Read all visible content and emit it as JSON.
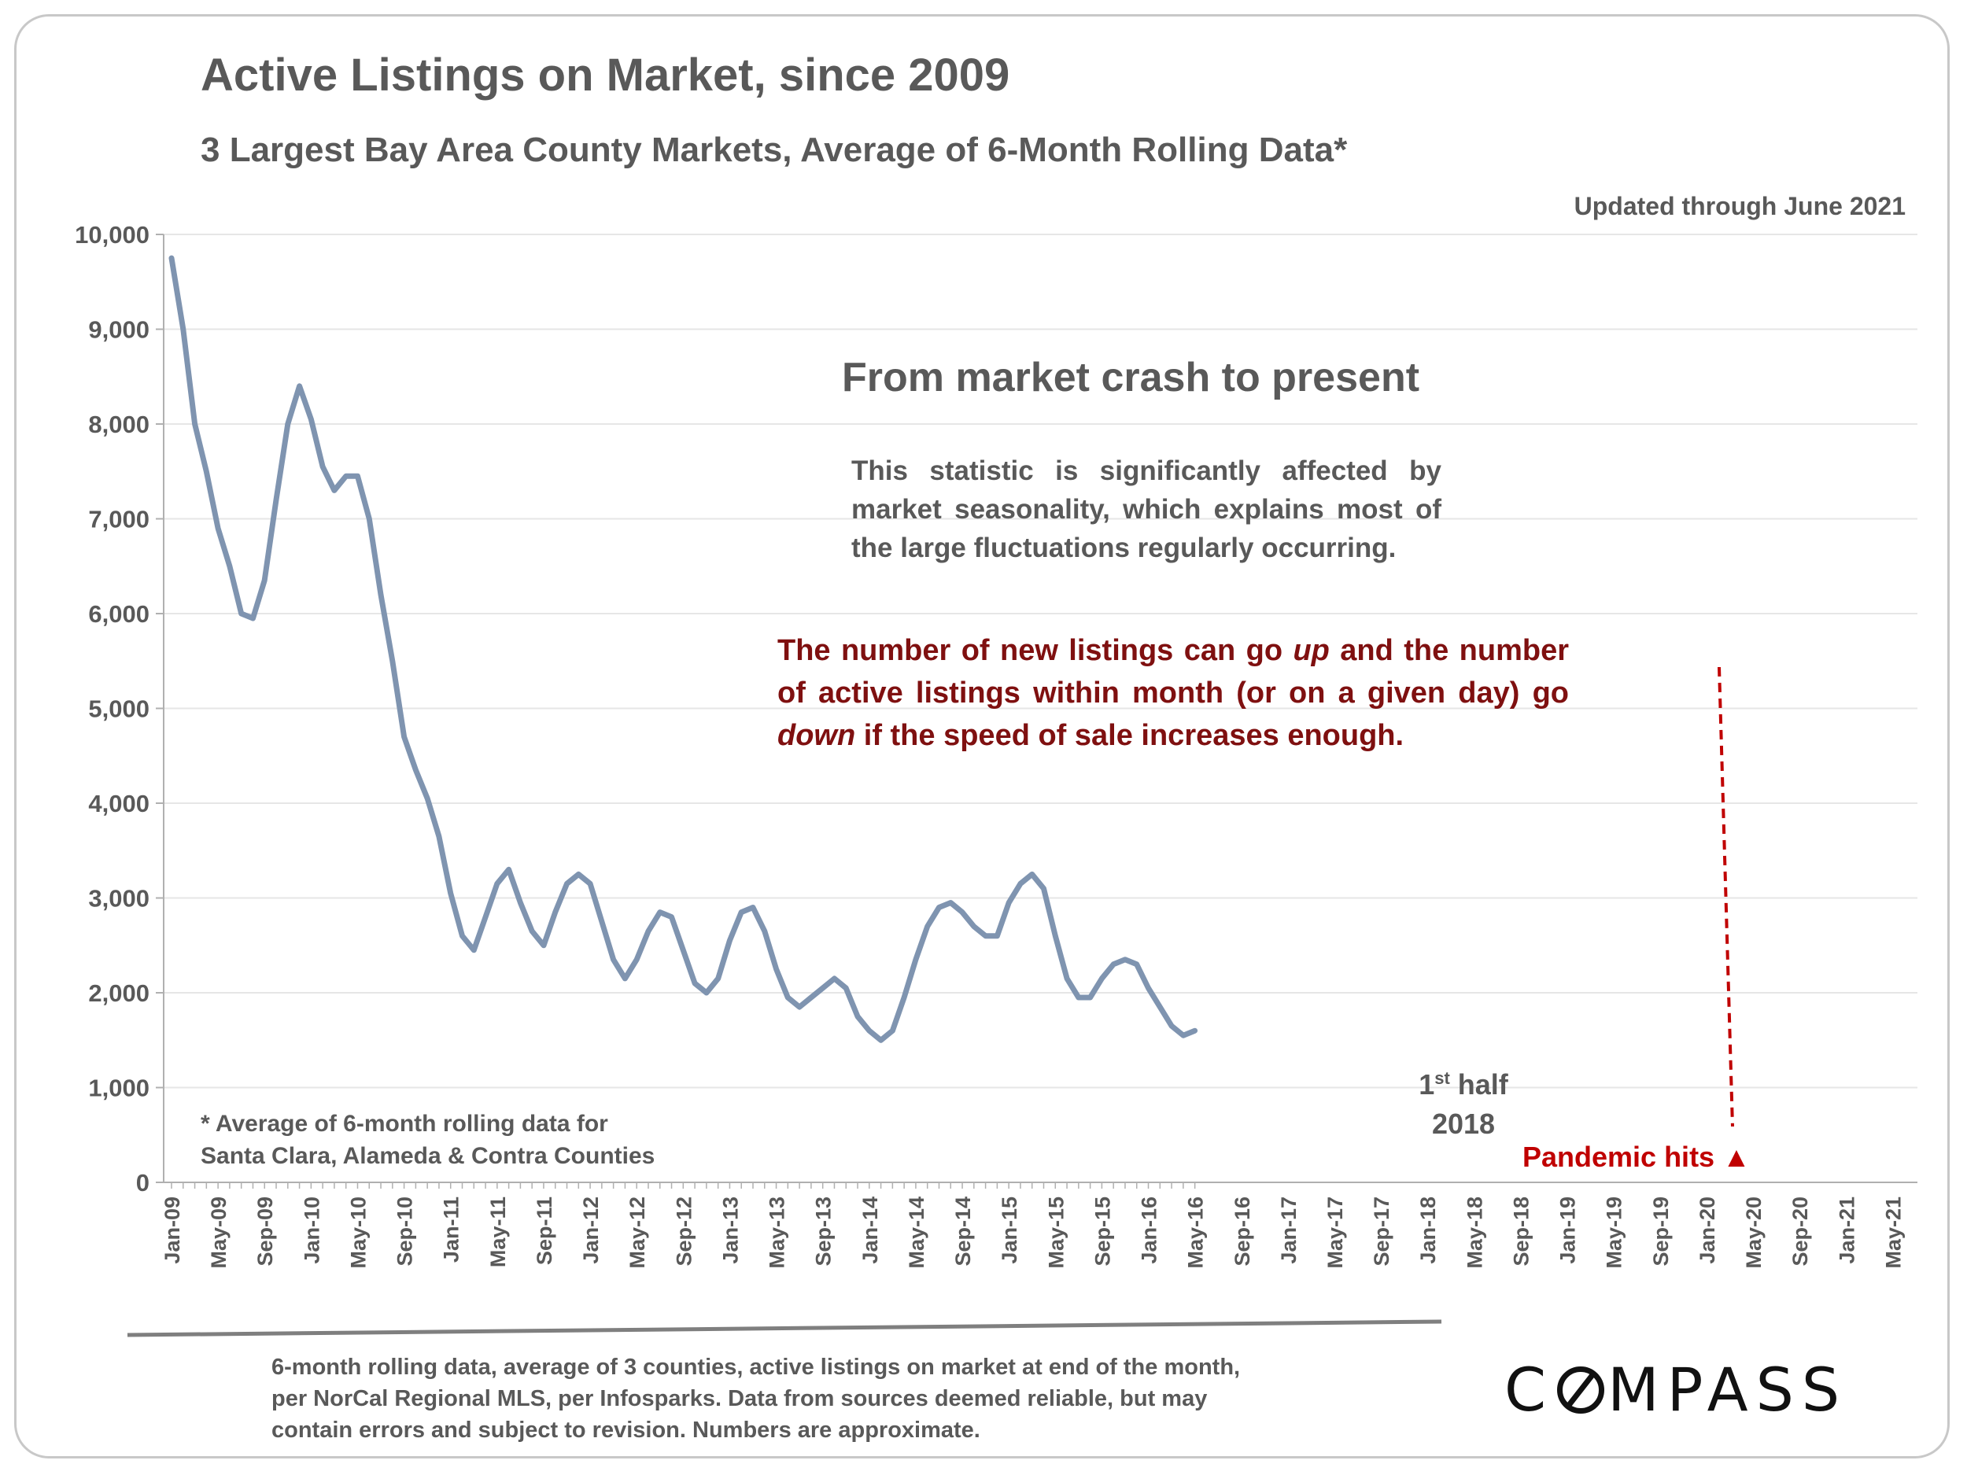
{
  "chart_data": {
    "type": "line",
    "title": "Active Listings on Market, since 2009",
    "subtitle": "3 Largest Bay Area County Markets, Average of 6-Month Rolling Data*",
    "updated": "Updated through June 2021",
    "ylim": [
      0,
      10000
    ],
    "y_ticks": [
      "0",
      "1,000",
      "2,000",
      "3,000",
      "4,000",
      "5,000",
      "6,000",
      "7,000",
      "8,000",
      "9,000",
      "10,000"
    ],
    "x_tick_labels": [
      "Jan-09",
      "May-09",
      "Sep-09",
      "Jan-10",
      "May-10",
      "Sep-10",
      "Jan-11",
      "May-11",
      "Sep-11",
      "Jan-12",
      "May-12",
      "Sep-12",
      "Jan-13",
      "May-13",
      "Sep-13",
      "Jan-14",
      "May-14",
      "Sep-14",
      "Jan-15",
      "May-15",
      "Sep-15",
      "Jan-16",
      "May-16",
      "Sep-16",
      "Jan-17",
      "May-17",
      "Sep-17",
      "Jan-18",
      "May-18",
      "Sep-18",
      "Jan-19",
      "May-19",
      "Sep-19",
      "Jan-20",
      "May-20",
      "Sep-20",
      "Jan-21",
      "May-21"
    ],
    "grid": true,
    "line_color": "#7f94b0",
    "series": [
      {
        "values": [
          9750,
          9000,
          8000,
          7500,
          6900,
          6500,
          6000,
          5950,
          6350,
          7200,
          8000,
          8400,
          8050,
          7550,
          7300,
          7450,
          7450,
          7000,
          6200,
          5500,
          4700,
          4350,
          4050,
          3650,
          3050,
          2600,
          2450,
          2800,
          3150,
          3300,
          2950,
          2650,
          2500,
          2850,
          3150,
          3250,
          3150,
          2750,
          2350,
          2150,
          2350,
          2650,
          2850,
          2800,
          2450,
          2100,
          2000,
          2150,
          2550,
          2850,
          2900,
          2650,
          2250,
          1950,
          1850,
          1950,
          2050,
          2150,
          2050,
          1750,
          1600,
          1500,
          1600,
          1950,
          2350,
          2700,
          2900,
          2950,
          2850,
          2700,
          2600,
          2600,
          2950,
          3150,
          3250,
          3100,
          2600,
          2150,
          1950,
          1950,
          2150,
          2300,
          2350,
          2300,
          2050,
          1850,
          1650,
          1550,
          1600
        ]
      }
    ],
    "annotations": {
      "headline": "From market crash to present",
      "seasonality_note": "This statistic is significantly affected by market seasonality, which explains most of the large fluctuations regularly occurring.",
      "speed_note_1": "The number of new listings can go ",
      "speed_note_up": "up",
      "speed_note_2": " and the number of active listings within month (or on a given day) go ",
      "speed_note_down": "down",
      "speed_note_3": " if the speed of sale increases enough.",
      "first_half_sup_prefix": "1",
      "first_half_sup": "st",
      "first_half_line1_rest": " half",
      "first_half_line2": "2018",
      "pandemic_label": "Pandemic hits",
      "pandemic_marker": "▲",
      "pandemic_color": "#c00000"
    }
  },
  "footnote": "* Average of 6-month rolling data for Santa Clara, Alameda & Contra Counties",
  "sources": "6-month rolling data, average of 3 counties, active listings on market at end of the month, per NorCal Regional MLS, per Infosparks. Data from sources deemed reliable, but may contain errors and subject to revision. Numbers are approximate.",
  "logo_text": {
    "before": "C",
    "after": "MPASS"
  }
}
